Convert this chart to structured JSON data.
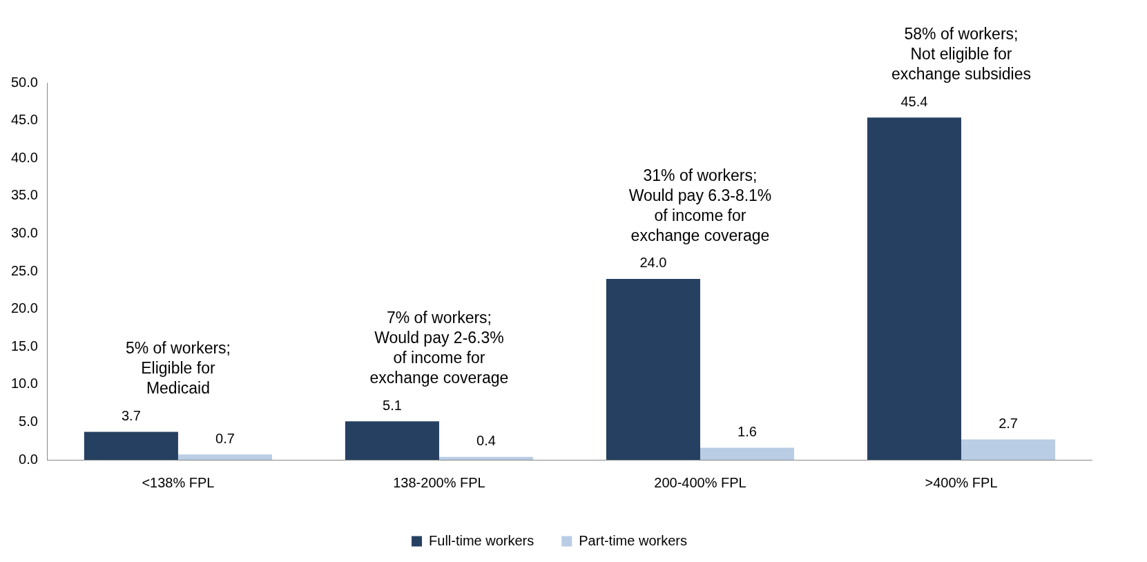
{
  "chart_data": {
    "type": "bar",
    "categories": [
      "<138% FPL",
      "138-200% FPL",
      "200-400% FPL",
      ">400% FPL"
    ],
    "series": [
      {
        "name": "Full-time workers",
        "color": "#264061",
        "values": [
          3.7,
          5.1,
          24.0,
          45.4
        ]
      },
      {
        "name": "Part-time workers",
        "color": "#b9cde5",
        "values": [
          0.7,
          0.4,
          1.6,
          2.7
        ]
      }
    ],
    "ylim": [
      0,
      50
    ],
    "yticks": [
      {
        "value": 0,
        "label": "0.0"
      },
      {
        "value": 5,
        "label": "5.0"
      },
      {
        "value": 10,
        "label": "10.0"
      },
      {
        "value": 15,
        "label": "15.0"
      },
      {
        "value": 20,
        "label": "20.0"
      },
      {
        "value": 25,
        "label": "25.0"
      },
      {
        "value": 30,
        "label": "30.0"
      },
      {
        "value": 35,
        "label": "35.0"
      },
      {
        "value": 40,
        "label": "40.0"
      },
      {
        "value": 45,
        "label": "45.0"
      },
      {
        "value": 50,
        "label": "50.0"
      }
    ],
    "value_labels": [
      [
        "3.7",
        "5.1",
        "24.0",
        "45.4"
      ],
      [
        "0.7",
        "0.4",
        "1.6",
        "2.7"
      ]
    ],
    "annotations": [
      {
        "text": "5% of workers;\nEligible for\nMedicaid",
        "x": "<138% FPL",
        "y": 3.7
      },
      {
        "text": "7% of workers;\nWould pay 2-6.3%\nof income for\nexchange coverage",
        "x": "138-200% FPL",
        "y": 5.1
      },
      {
        "text": "31% of workers;\nWould pay 6.3-8.1%\nof income for\nexchange coverage",
        "x": "200-400% FPL",
        "y": 24.0
      },
      {
        "text": "58% of workers;\nNot eligible for\nexchange subsidies",
        "x": ">400% FPL",
        "y": 45.4
      }
    ],
    "grid": false,
    "legend": "bottom"
  }
}
